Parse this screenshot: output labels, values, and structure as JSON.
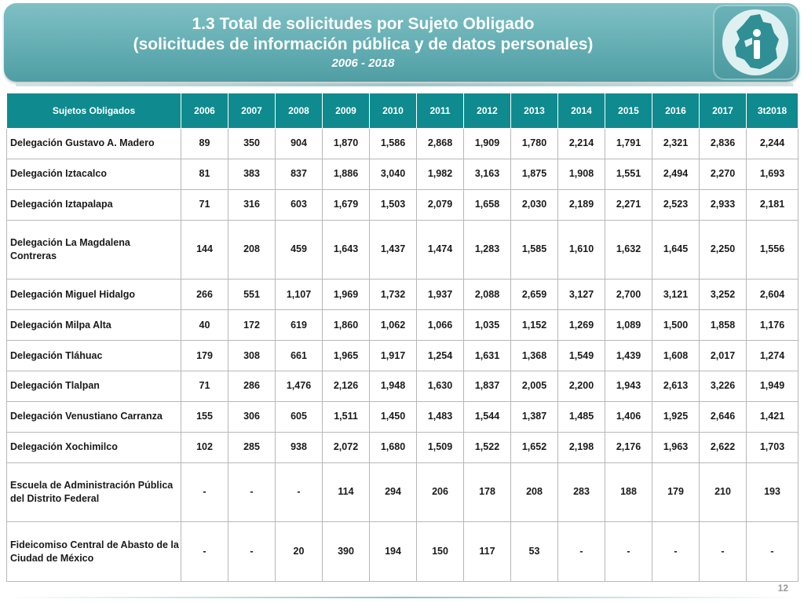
{
  "header": {
    "title_line1": "1.3 Total de solicitudes por Sujeto Obligado",
    "title_line2": "(solicitudes de información pública y de datos personales)",
    "period": "2006 - 2018"
  },
  "logo": {
    "icon": "cdmx-info-logo-icon"
  },
  "table": {
    "columns": [
      "Sujetos Obligados",
      "2006",
      "2007",
      "2008",
      "2009",
      "2010",
      "2011",
      "2012",
      "2013",
      "2014",
      "2015",
      "2016",
      "2017",
      "3t2018"
    ],
    "rows": [
      [
        "Delegación Gustavo A. Madero",
        "89",
        "350",
        "904",
        "1,870",
        "1,586",
        "2,868",
        "1,909",
        "1,780",
        "2,214",
        "1,791",
        "2,321",
        "2,836",
        "2,244"
      ],
      [
        "Delegación Iztacalco",
        "81",
        "383",
        "837",
        "1,886",
        "3,040",
        "1,982",
        "3,163",
        "1,875",
        "1,908",
        "1,551",
        "2,494",
        "2,270",
        "1,693"
      ],
      [
        "Delegación Iztapalapa",
        "71",
        "316",
        "603",
        "1,679",
        "1,503",
        "2,079",
        "1,658",
        "2,030",
        "2,189",
        "2,271",
        "2,523",
        "2,933",
        "2,181"
      ],
      [
        "Delegación La Magdalena Contreras",
        "144",
        "208",
        "459",
        "1,643",
        "1,437",
        "1,474",
        "1,283",
        "1,585",
        "1,610",
        "1,632",
        "1,645",
        "2,250",
        "1,556"
      ],
      [
        "Delegación Miguel Hidalgo",
        "266",
        "551",
        "1,107",
        "1,969",
        "1,732",
        "1,937",
        "2,088",
        "2,659",
        "3,127",
        "2,700",
        "3,121",
        "3,252",
        "2,604"
      ],
      [
        "Delegación Milpa Alta",
        "40",
        "172",
        "619",
        "1,860",
        "1,062",
        "1,066",
        "1,035",
        "1,152",
        "1,269",
        "1,089",
        "1,500",
        "1,858",
        "1,176"
      ],
      [
        "Delegación Tláhuac",
        "179",
        "308",
        "661",
        "1,965",
        "1,917",
        "1,254",
        "1,631",
        "1,368",
        "1,549",
        "1,439",
        "1,608",
        "2,017",
        "1,274"
      ],
      [
        "Delegación Tlalpan",
        "71",
        "286",
        "1,476",
        "2,126",
        "1,948",
        "1,630",
        "1,837",
        "2,005",
        "2,200",
        "1,943",
        "2,613",
        "3,226",
        "1,949"
      ],
      [
        "Delegación Venustiano Carranza",
        "155",
        "306",
        "605",
        "1,511",
        "1,450",
        "1,483",
        "1,544",
        "1,387",
        "1,485",
        "1,406",
        "1,925",
        "2,646",
        "1,421"
      ],
      [
        "Delegación Xochimilco",
        "102",
        "285",
        "938",
        "2,072",
        "1,680",
        "1,509",
        "1,522",
        "1,652",
        "2,198",
        "2,176",
        "1,963",
        "2,622",
        "1,703"
      ],
      [
        "Escuela de Administración Pública del Distrito Federal",
        "-",
        "-",
        "-",
        "114",
        "294",
        "206",
        "178",
        "208",
        "283",
        "188",
        "179",
        "210",
        "193"
      ],
      [
        "Fideicomiso Central de Abasto de la Ciudad de México",
        "-",
        "-",
        "20",
        "390",
        "194",
        "150",
        "117",
        "53",
        "-",
        "-",
        "-",
        "-",
        "-"
      ]
    ]
  },
  "footer": {
    "page_number": "12"
  },
  "colors": {
    "header": "#64aeb3",
    "table_header": "#0f8a8e",
    "grid": "#b8b8b8"
  }
}
